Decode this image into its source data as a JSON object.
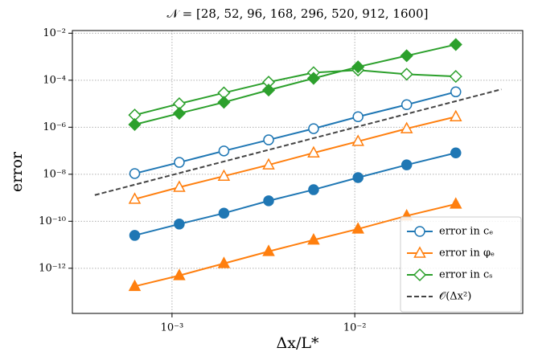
{
  "chart_data": {
    "type": "line",
    "title": "𝒩 = [28, 52, 96, 168, 296, 520, 912, 1600]",
    "xlabel": "Δx/L*",
    "ylabel": "error",
    "x": [
      0.000625,
      0.001096,
      0.001923,
      0.003378,
      0.005952,
      0.01042,
      0.01923,
      0.03571
    ],
    "xscale": "log",
    "yscale": "log",
    "xlim": [
      0.000285,
      0.083
    ],
    "ylim": [
      1.2e-14,
      0.013
    ],
    "xticks": [
      {
        "value": 0.001,
        "label": "10⁻³"
      },
      {
        "value": 0.01,
        "label": "10⁻²"
      }
    ],
    "yticks": [
      {
        "value": 1e-12,
        "label": "10⁻¹²"
      },
      {
        "value": 1e-10,
        "label": "10⁻¹⁰"
      },
      {
        "value": 1e-08,
        "label": "10⁻⁸"
      },
      {
        "value": 1e-06,
        "label": "10⁻⁶"
      },
      {
        "value": 0.0001,
        "label": "10⁻⁴"
      },
      {
        "value": 0.01,
        "label": "10⁻²"
      }
    ],
    "grid": true,
    "legend": "lower right",
    "series": [
      {
        "name": "error in cₑ",
        "color": "#1f77b4",
        "marker": "circle",
        "filled": false,
        "values": [
          1.07e-08,
          3.2e-08,
          9.8e-08,
          2.9e-07,
          8.7e-07,
          2.8e-06,
          9.1e-06,
          3.2e-05
        ]
      },
      {
        "color": "#1f77b4",
        "marker": "circle",
        "filled": true,
        "values": [
          2.5e-11,
          7.6e-11,
          2.2e-10,
          7.4e-10,
          2.2e-09,
          7.2e-09,
          2.5e-08,
          8.1e-08
        ]
      },
      {
        "name": "error in φₑ",
        "color": "#ff7f0e",
        "marker": "triangle",
        "filled": false,
        "values": [
          8.7e-10,
          2.8e-09,
          8.3e-09,
          2.5e-08,
          8.1e-08,
          2.5e-07,
          8.7e-07,
          2.8e-06
        ]
      },
      {
        "color": "#ff7f0e",
        "marker": "triangle",
        "filled": true,
        "values": [
          1.7e-13,
          4.9e-13,
          1.6e-12,
          5.2e-12,
          1.6e-11,
          4.7e-11,
          1.7e-10,
          5.4e-10
        ]
      },
      {
        "name": "error in cₛ",
        "color": "#2ca02c",
        "marker": "diamond",
        "filled": false,
        "values": [
          3.3e-06,
          1e-05,
          2.9e-05,
          8.3e-05,
          0.00021,
          0.00027,
          0.00018,
          0.000145
        ]
      },
      {
        "color": "#2ca02c",
        "marker": "diamond",
        "filled": true,
        "values": [
          1.3e-06,
          3.9e-06,
          1.15e-05,
          3.8e-05,
          0.00012,
          0.00037,
          0.0011,
          0.0033
        ]
      },
      {
        "name": "𝒪(Δx²)",
        "color": "#444444",
        "linestyle": "dashed",
        "x": [
          0.000378,
          0.0634
        ],
        "values": [
          1.3e-09,
          4.1e-05
        ]
      }
    ]
  }
}
